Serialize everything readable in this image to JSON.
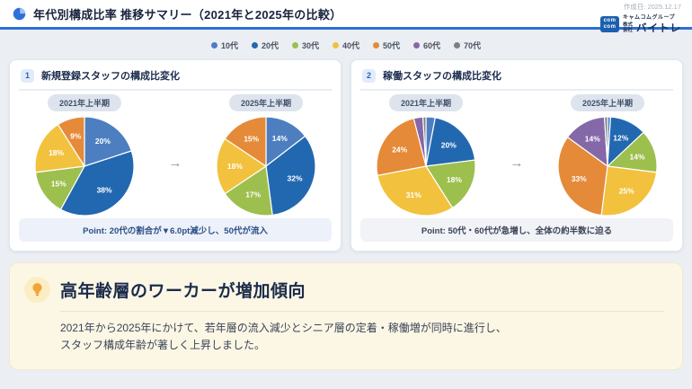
{
  "meta": {
    "created_label": "作成日: 2025.12.17"
  },
  "header": {
    "title": "年代別構成比率 推移サマリー（2021年と2025年の比較）",
    "logo": {
      "mark_line1": "com",
      "mark_line2": "com",
      "group_name": "キャムコムグループ",
      "company_prefix": "株式会社",
      "company_name": "バイトレ"
    }
  },
  "theme": {
    "accent_blue": "#2e6fd8",
    "panel_point_bg": "#ecf1fa",
    "callout_bg": "#fcf7e5"
  },
  "age_groups": [
    {
      "label": "10代",
      "color": "#4d7ec0"
    },
    {
      "label": "20代",
      "color": "#2268b0"
    },
    {
      "label": "30代",
      "color": "#9dbf4e"
    },
    {
      "label": "40代",
      "color": "#f2c23e"
    },
    {
      "label": "50代",
      "color": "#e58a39"
    },
    {
      "label": "60代",
      "color": "#8568a8"
    },
    {
      "label": "70代",
      "color": "#7a8087"
    }
  ],
  "panels": [
    {
      "number": "1",
      "title": "新規登録スタッフの構成比変化",
      "arrow": "→",
      "point": "Point: 20代の割合が▼6.0pt減少し、50代が流入",
      "pies": [
        {
          "period": "2021年上半期",
          "slices": [
            {
              "group": 0,
              "value": 20,
              "label": "20%"
            },
            {
              "group": 1,
              "value": 38,
              "label": "38%"
            },
            {
              "group": 2,
              "value": 15,
              "label": "15%"
            },
            {
              "group": 3,
              "value": 18,
              "label": "18%"
            },
            {
              "group": 4,
              "value": 9,
              "label": "9%"
            }
          ]
        },
        {
          "period": "2025年上半期",
          "slices": [
            {
              "group": 0,
              "value": 14,
              "label": "14%"
            },
            {
              "group": 1,
              "value": 32,
              "label": "32%"
            },
            {
              "group": 2,
              "value": 17,
              "label": "17%"
            },
            {
              "group": 3,
              "value": 18,
              "label": "18%"
            },
            {
              "group": 4,
              "value": 15,
              "label": "15%"
            }
          ]
        }
      ]
    },
    {
      "number": "2",
      "title": "稼働スタッフの構成比変化",
      "arrow": "→",
      "point": "Point: 50代・60代が急増し、全体の約半数に迫る",
      "pies": [
        {
          "period": "2021年上半期",
          "slices": [
            {
              "group": 0,
              "value": 3
            },
            {
              "group": 1,
              "value": 20,
              "label": "20%"
            },
            {
              "group": 2,
              "value": 18,
              "label": "18%"
            },
            {
              "group": 3,
              "value": 31,
              "label": "31%"
            },
            {
              "group": 4,
              "value": 24,
              "label": "24%"
            },
            {
              "group": 5,
              "value": 3
            },
            {
              "group": 6,
              "value": 1
            }
          ]
        },
        {
          "period": "2025年上半期",
          "slices": [
            {
              "group": 0,
              "value": 1
            },
            {
              "group": 1,
              "value": 12,
              "label": "12%"
            },
            {
              "group": 2,
              "value": 14,
              "label": "14%"
            },
            {
              "group": 3,
              "value": 25,
              "label": "25%"
            },
            {
              "group": 4,
              "value": 33,
              "label": "33%"
            },
            {
              "group": 5,
              "value": 14,
              "label": "14%"
            },
            {
              "group": 6,
              "value": 1
            }
          ]
        }
      ]
    }
  ],
  "callout": {
    "title": "高年齢層のワーカーが増加傾向",
    "body_line1": "2021年から2025年にかけて、若年層の流入減少とシニア層の定着・稼働増が同時に進行し、",
    "body_line2": "スタッフ構成年齢が著しく上昇しました。"
  },
  "chart_data": [
    {
      "type": "pie",
      "title": "新規登録スタッフの構成比 2021年上半期",
      "labels": [
        "10代",
        "20代",
        "30代",
        "40代",
        "50代"
      ],
      "values": [
        20,
        38,
        15,
        18,
        9
      ]
    },
    {
      "type": "pie",
      "title": "新規登録スタッフの構成比 2025年上半期",
      "labels": [
        "10代",
        "20代",
        "30代",
        "40代",
        "50代"
      ],
      "values": [
        14,
        32,
        17,
        18,
        15
      ]
    },
    {
      "type": "pie",
      "title": "稼働スタッフの構成比 2021年上半期",
      "labels": [
        "10代",
        "20代",
        "30代",
        "40代",
        "50代",
        "60代",
        "70代"
      ],
      "values": [
        3,
        20,
        18,
        31,
        24,
        3,
        1
      ]
    },
    {
      "type": "pie",
      "title": "稼働スタッフの構成比 2025年上半期",
      "labels": [
        "10代",
        "20代",
        "30代",
        "40代",
        "50代",
        "60代",
        "70代"
      ],
      "values": [
        1,
        12,
        14,
        25,
        33,
        14,
        1
      ]
    }
  ]
}
